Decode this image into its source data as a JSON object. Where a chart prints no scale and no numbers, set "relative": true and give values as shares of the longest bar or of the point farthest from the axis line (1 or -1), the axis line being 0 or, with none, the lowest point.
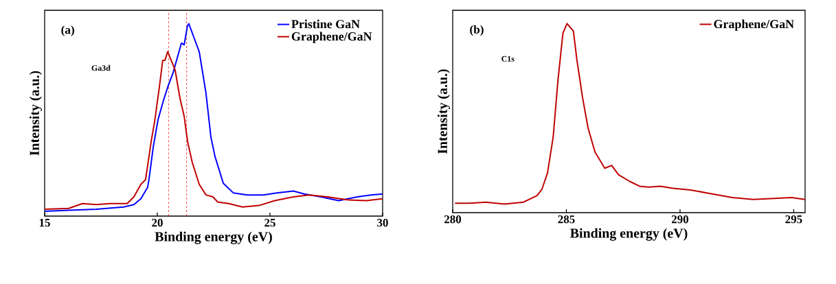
{
  "chart_data": [
    {
      "type": "line",
      "xlabel": "Binding energy (eV)",
      "ylabel": "Intensity (a.u.)",
      "relative": true,
      "xlim": [
        15,
        30
      ],
      "xticks": [
        15,
        20,
        25,
        30
      ],
      "legend": "top right",
      "marker": "none",
      "line_style": "solid",
      "annotations": [
        "(a)",
        "Ga3d"
      ],
      "ref_lines": [
        {
          "axis": "x",
          "value": 20.5,
          "color": "#ff0000",
          "line_style": "dashed"
        },
        {
          "axis": "x",
          "value": 21.3,
          "color": "#ff0000",
          "line_style": "dashed"
        }
      ],
      "series": [
        {
          "name": "Pristine  GaN",
          "color": "#0000ff",
          "x": [
            15.0,
            16.07,
            17.29,
            18.51,
            18.96,
            19.27,
            19.57,
            19.63,
            19.82,
            20.03,
            20.27,
            20.49,
            20.7,
            20.88,
            21.07,
            21.19,
            21.34,
            21.4,
            21.62,
            21.86,
            22.16,
            22.38,
            22.56,
            22.93,
            23.38,
            23.99,
            24.7,
            25.3,
            26.04,
            26.52,
            27.26,
            28.05,
            28.87,
            29.48,
            30.0
          ],
          "values": [
            0.025,
            0.03,
            0.036,
            0.047,
            0.06,
            0.09,
            0.15,
            0.19,
            0.36,
            0.5,
            0.6,
            0.68,
            0.745,
            0.82,
            0.9,
            0.89,
            0.99,
            1.0,
            0.93,
            0.855,
            0.64,
            0.41,
            0.31,
            0.17,
            0.12,
            0.11,
            0.11,
            0.12,
            0.13,
            0.115,
            0.1,
            0.08,
            0.1,
            0.11,
            0.115
          ]
        },
        {
          "name": "Graphene/GaN",
          "color": "#c00000",
          "x": [
            15.0,
            16.07,
            16.68,
            17.29,
            17.9,
            18.66,
            18.96,
            19.27,
            19.48,
            19.73,
            19.88,
            20.09,
            20.24,
            20.34,
            20.46,
            20.58,
            20.79,
            21.01,
            21.19,
            21.34,
            21.55,
            21.86,
            22.16,
            22.47,
            22.68,
            23.17,
            23.78,
            24.51,
            25.21,
            26.04,
            26.74,
            27.56,
            28.48,
            29.27,
            30.0
          ],
          "values": [
            0.036,
            0.04,
            0.065,
            0.06,
            0.065,
            0.065,
            0.1,
            0.165,
            0.19,
            0.39,
            0.49,
            0.67,
            0.81,
            0.81,
            0.855,
            0.82,
            0.76,
            0.61,
            0.52,
            0.39,
            0.28,
            0.165,
            0.11,
            0.1,
            0.073,
            0.065,
            0.047,
            0.055,
            0.08,
            0.1,
            0.11,
            0.1,
            0.084,
            0.08,
            0.09
          ]
        }
      ]
    },
    {
      "type": "line",
      "xlabel": "Binding energy (eV)",
      "ylabel": "Intensity (a.u.)",
      "relative": true,
      "xlim": [
        280,
        295.5
      ],
      "xticks": [
        280,
        285,
        290,
        295
      ],
      "legend": "top right",
      "marker": "none",
      "line_style": "solid",
      "annotations": [
        "(b)",
        "C1s"
      ],
      "series": [
        {
          "name": "Graphene/GaN",
          "color": "#c00000",
          "x": [
            280.1,
            280.74,
            281.47,
            282.27,
            283.1,
            283.71,
            283.93,
            284.17,
            284.42,
            284.63,
            284.85,
            285.03,
            285.31,
            285.46,
            285.71,
            285.95,
            286.26,
            286.69,
            286.99,
            287.3,
            287.79,
            288.22,
            288.62,
            289.14,
            289.63,
            290.46,
            291.38,
            292.3,
            293.22,
            294.14,
            294.9,
            295.5
          ],
          "values": [
            0.05,
            0.05,
            0.055,
            0.045,
            0.055,
            0.09,
            0.125,
            0.21,
            0.4,
            0.7,
            0.95,
            1.0,
            0.96,
            0.81,
            0.61,
            0.45,
            0.32,
            0.235,
            0.25,
            0.2,
            0.165,
            0.14,
            0.135,
            0.14,
            0.13,
            0.12,
            0.1,
            0.08,
            0.07,
            0.075,
            0.08,
            0.07
          ]
        }
      ]
    }
  ]
}
